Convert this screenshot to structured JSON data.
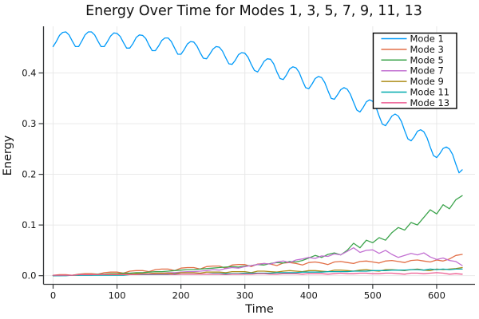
{
  "chart_data": {
    "type": "line",
    "title": "Energy Over Time for Modes 1, 3, 5, 7, 9, 11, 13",
    "xlabel": "Time",
    "ylabel": "Energy",
    "xlim": [
      -15,
      660
    ],
    "ylim": [
      -0.017,
      0.492
    ],
    "x_ticks": [
      0,
      100,
      200,
      300,
      400,
      500,
      600
    ],
    "x_tick_labels": [
      "0",
      "100",
      "200",
      "300",
      "400",
      "500",
      "600"
    ],
    "y_ticks": [
      0.0,
      0.1,
      0.2,
      0.3,
      0.4
    ],
    "y_tick_labels": [
      "0.0",
      "0.1",
      "0.2",
      "0.3",
      "0.4"
    ],
    "grid": true,
    "legend_position": "top-right",
    "background_color": "#ffffff",
    "grid_color": "#e6e6e6",
    "spine_color": "#36383a",
    "series": [
      {
        "name": "Mode 1",
        "color": "#009af9",
        "x_start": 0,
        "x_step": 5,
        "values": [
          0.452,
          0.462,
          0.474,
          0.48,
          0.481,
          0.475,
          0.463,
          0.452,
          0.452,
          0.463,
          0.475,
          0.481,
          0.481,
          0.475,
          0.463,
          0.452,
          0.452,
          0.462,
          0.473,
          0.479,
          0.478,
          0.472,
          0.46,
          0.449,
          0.449,
          0.458,
          0.47,
          0.475,
          0.474,
          0.468,
          0.455,
          0.444,
          0.444,
          0.453,
          0.464,
          0.469,
          0.469,
          0.462,
          0.449,
          0.437,
          0.437,
          0.446,
          0.457,
          0.462,
          0.461,
          0.453,
          0.44,
          0.429,
          0.428,
          0.437,
          0.447,
          0.452,
          0.451,
          0.443,
          0.43,
          0.418,
          0.417,
          0.425,
          0.436,
          0.44,
          0.439,
          0.431,
          0.417,
          0.405,
          0.402,
          0.412,
          0.423,
          0.428,
          0.427,
          0.418,
          0.402,
          0.389,
          0.387,
          0.396,
          0.408,
          0.412,
          0.41,
          0.401,
          0.385,
          0.371,
          0.369,
          0.378,
          0.389,
          0.393,
          0.391,
          0.381,
          0.365,
          0.35,
          0.348,
          0.357,
          0.367,
          0.371,
          0.368,
          0.358,
          0.342,
          0.327,
          0.323,
          0.332,
          0.343,
          0.347,
          0.344,
          0.333,
          0.315,
          0.299,
          0.296,
          0.305,
          0.315,
          0.319,
          0.315,
          0.304,
          0.286,
          0.27,
          0.266,
          0.274,
          0.285,
          0.288,
          0.284,
          0.272,
          0.254,
          0.237,
          0.233,
          0.241,
          0.251,
          0.254,
          0.25,
          0.239,
          0.22,
          0.203,
          0.209
        ]
      },
      {
        "name": "Mode 3",
        "color": "#e26e46",
        "x_start": 0,
        "x_step": 10,
        "values": [
          0.001,
          0.002,
          0.002,
          0.001,
          0.003,
          0.004,
          0.004,
          0.003,
          0.006,
          0.007,
          0.007,
          0.005,
          0.009,
          0.01,
          0.01,
          0.008,
          0.012,
          0.013,
          0.013,
          0.01,
          0.015,
          0.016,
          0.016,
          0.013,
          0.018,
          0.019,
          0.019,
          0.015,
          0.021,
          0.022,
          0.022,
          0.018,
          0.023,
          0.024,
          0.023,
          0.02,
          0.025,
          0.026,
          0.024,
          0.021,
          0.026,
          0.027,
          0.025,
          0.022,
          0.027,
          0.028,
          0.026,
          0.024,
          0.028,
          0.029,
          0.027,
          0.025,
          0.029,
          0.03,
          0.028,
          0.026,
          0.03,
          0.031,
          0.029,
          0.027,
          0.031,
          0.029,
          0.033,
          0.04,
          0.042
        ]
      },
      {
        "name": "Mode 5",
        "color": "#3da44d",
        "x_start": 0,
        "x_step": 10,
        "values": [
          0.0,
          0.001,
          0.001,
          0.001,
          0.002,
          0.002,
          0.002,
          0.003,
          0.003,
          0.004,
          0.004,
          0.005,
          0.005,
          0.006,
          0.006,
          0.007,
          0.008,
          0.008,
          0.009,
          0.01,
          0.011,
          0.012,
          0.012,
          0.013,
          0.014,
          0.015,
          0.016,
          0.017,
          0.018,
          0.017,
          0.019,
          0.02,
          0.022,
          0.021,
          0.024,
          0.026,
          0.025,
          0.028,
          0.027,
          0.03,
          0.035,
          0.04,
          0.036,
          0.042,
          0.045,
          0.041,
          0.05,
          0.064,
          0.055,
          0.07,
          0.065,
          0.075,
          0.07,
          0.085,
          0.095,
          0.09,
          0.105,
          0.1,
          0.115,
          0.13,
          0.122,
          0.14,
          0.132,
          0.15,
          0.158
        ]
      },
      {
        "name": "Mode 7",
        "color": "#c270d2",
        "x_start": 0,
        "x_step": 10,
        "values": [
          0.0,
          0.0,
          0.001,
          0.001,
          0.001,
          0.001,
          0.001,
          0.002,
          0.002,
          0.002,
          0.002,
          0.003,
          0.003,
          0.003,
          0.004,
          0.004,
          0.005,
          0.005,
          0.006,
          0.006,
          0.007,
          0.008,
          0.008,
          0.009,
          0.01,
          0.012,
          0.011,
          0.014,
          0.016,
          0.015,
          0.018,
          0.02,
          0.022,
          0.024,
          0.023,
          0.027,
          0.029,
          0.026,
          0.031,
          0.033,
          0.036,
          0.034,
          0.039,
          0.038,
          0.043,
          0.041,
          0.048,
          0.055,
          0.046,
          0.05,
          0.051,
          0.044,
          0.05,
          0.042,
          0.036,
          0.04,
          0.044,
          0.041,
          0.045,
          0.037,
          0.032,
          0.035,
          0.03,
          0.028,
          0.02
        ]
      },
      {
        "name": "Mode 9",
        "color": "#ad8c17",
        "x_start": 0,
        "x_step": 10,
        "values": [
          0.0,
          0.001,
          0.001,
          0.001,
          0.001,
          0.002,
          0.002,
          0.002,
          0.002,
          0.003,
          0.003,
          0.003,
          0.003,
          0.004,
          0.004,
          0.004,
          0.005,
          0.005,
          0.005,
          0.004,
          0.006,
          0.006,
          0.006,
          0.005,
          0.007,
          0.007,
          0.007,
          0.006,
          0.008,
          0.008,
          0.008,
          0.006,
          0.009,
          0.009,
          0.008,
          0.007,
          0.009,
          0.01,
          0.009,
          0.008,
          0.01,
          0.01,
          0.009,
          0.008,
          0.011,
          0.011,
          0.01,
          0.009,
          0.011,
          0.012,
          0.01,
          0.009,
          0.012,
          0.012,
          0.011,
          0.01,
          0.012,
          0.013,
          0.011,
          0.01,
          0.013,
          0.012,
          0.013,
          0.014,
          0.016
        ]
      },
      {
        "name": "Mode 11",
        "color": "#00a9ad",
        "x_start": 0,
        "x_step": 10,
        "values": [
          0.0,
          0.0,
          0.0,
          0.001,
          0.001,
          0.001,
          0.001,
          0.001,
          0.001,
          0.001,
          0.001,
          0.001,
          0.002,
          0.002,
          0.002,
          0.002,
          0.002,
          0.002,
          0.002,
          0.003,
          0.003,
          0.003,
          0.003,
          0.003,
          0.003,
          0.004,
          0.004,
          0.004,
          0.004,
          0.004,
          0.005,
          0.005,
          0.005,
          0.005,
          0.005,
          0.006,
          0.006,
          0.006,
          0.006,
          0.007,
          0.007,
          0.007,
          0.007,
          0.008,
          0.008,
          0.008,
          0.008,
          0.009,
          0.009,
          0.009,
          0.01,
          0.01,
          0.01,
          0.011,
          0.011,
          0.011,
          0.012,
          0.012,
          0.011,
          0.013,
          0.012,
          0.013,
          0.012,
          0.013,
          0.013
        ]
      },
      {
        "name": "Mode 13",
        "color": "#ed5d92",
        "x_start": 0,
        "x_step": 10,
        "values": [
          0.001,
          0.001,
          0.001,
          0.001,
          0.002,
          0.002,
          0.002,
          0.002,
          0.002,
          0.002,
          0.002,
          0.002,
          0.002,
          0.002,
          0.003,
          0.003,
          0.003,
          0.003,
          0.003,
          0.002,
          0.003,
          0.003,
          0.003,
          0.003,
          0.003,
          0.003,
          0.003,
          0.002,
          0.003,
          0.003,
          0.003,
          0.003,
          0.004,
          0.004,
          0.003,
          0.003,
          0.004,
          0.004,
          0.004,
          0.003,
          0.004,
          0.004,
          0.004,
          0.003,
          0.004,
          0.005,
          0.004,
          0.004,
          0.005,
          0.005,
          0.004,
          0.004,
          0.005,
          0.005,
          0.004,
          0.003,
          0.005,
          0.005,
          0.004,
          0.005,
          0.006,
          0.005,
          0.003,
          0.004,
          0.003
        ]
      }
    ]
  }
}
